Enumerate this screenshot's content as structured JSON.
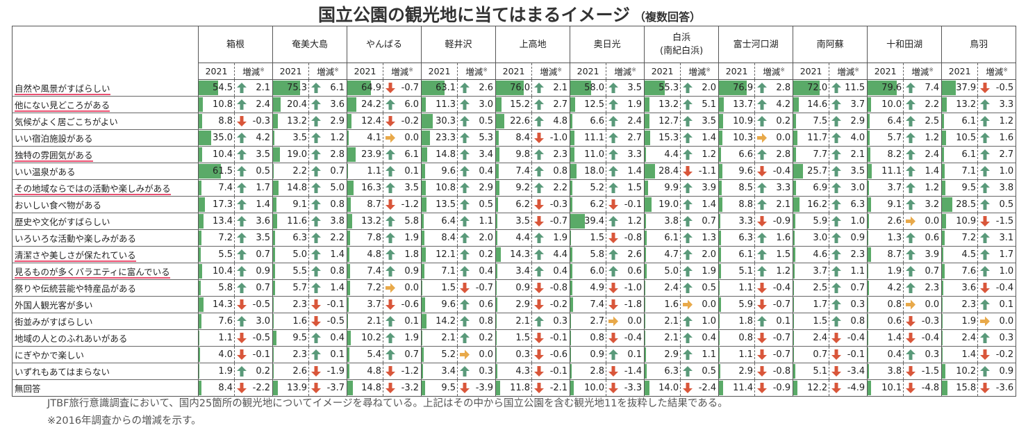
{
  "title": "国立公園の観光地に当てはまるイメージ",
  "subtitle": "（複数回答）",
  "year_label": "2021",
  "change_label": "増減",
  "change_mark": "※",
  "notes": [
    "JTBF旅行意識調査において、国内25箇所の観光地についてイメージを尋ねている。上記はその中から国立公園を含む観光地11を抜粋した結果である。",
    "※2016年調査からの増減を示す。"
  ],
  "colors": {
    "bar": "#5aaa68",
    "up": "#5a9a7a",
    "down": "#d9563a",
    "flat": "#e8a94a",
    "underline": "#e94f70"
  },
  "chart_data": {
    "type": "table",
    "destinations": [
      {
        "name": "箱根",
        "sub": ""
      },
      {
        "name": "奄美大島",
        "sub": ""
      },
      {
        "name": "やんばる",
        "sub": ""
      },
      {
        "name": "軽井沢",
        "sub": ""
      },
      {
        "name": "上高地",
        "sub": ""
      },
      {
        "name": "奥日光",
        "sub": ""
      },
      {
        "name": "白浜",
        "sub": "(南紀白浜)"
      },
      {
        "name": "富士河口湖",
        "sub": ""
      },
      {
        "name": "南阿蘇",
        "sub": ""
      },
      {
        "name": "十和田湖",
        "sub": ""
      },
      {
        "name": "鳥羽",
        "sub": ""
      }
    ],
    "rows": [
      {
        "label": "自然や風景がすばらしい",
        "underline": true,
        "values": [
          54.5,
          75.3,
          64.9,
          63.1,
          76.0,
          58.0,
          55.3,
          76.9,
          72.0,
          79.6,
          37.9
        ],
        "changes": [
          2.1,
          6.1,
          -0.7,
          2.6,
          2.1,
          3.5,
          2.0,
          2.8,
          11.5,
          7.4,
          -0.5
        ]
      },
      {
        "label": "他にない見どころがある",
        "underline": true,
        "values": [
          10.8,
          20.4,
          24.2,
          11.3,
          15.2,
          12.5,
          13.2,
          13.7,
          14.6,
          10.0,
          13.2
        ],
        "changes": [
          2.4,
          3.6,
          6.0,
          3.0,
          2.7,
          1.9,
          5.1,
          4.2,
          3.7,
          2.2,
          3.3
        ]
      },
      {
        "label": "気候がよく居ごこちがよい",
        "underline": false,
        "values": [
          8.8,
          13.2,
          12.4,
          30.3,
          22.6,
          6.6,
          12.7,
          10.9,
          7.5,
          6.4,
          6.1
        ],
        "changes": [
          -0.3,
          2.9,
          -0.2,
          0.5,
          4.8,
          2.4,
          3.5,
          0.2,
          2.9,
          2.5,
          1.2
        ]
      },
      {
        "label": "いい宿泊施設がある",
        "underline": false,
        "values": [
          35.0,
          3.5,
          4.1,
          23.3,
          8.4,
          11.1,
          15.3,
          10.3,
          11.7,
          5.7,
          10.5
        ],
        "changes": [
          4.2,
          1.2,
          0.0,
          5.3,
          -1.0,
          2.7,
          1.4,
          0.0,
          4.0,
          1.2,
          1.6
        ]
      },
      {
        "label": "独特の雰囲気がある",
        "underline": true,
        "values": [
          10.4,
          19.0,
          23.9,
          14.8,
          9.8,
          11.0,
          4.4,
          6.6,
          7.7,
          8.2,
          6.1
        ],
        "changes": [
          3.5,
          2.8,
          6.1,
          3.4,
          2.3,
          3.3,
          1.2,
          2.8,
          2.1,
          2.4,
          2.7
        ]
      },
      {
        "label": "いい温泉がある",
        "underline": false,
        "values": [
          61.5,
          2.2,
          1.1,
          9.6,
          7.4,
          18.0,
          28.4,
          9.6,
          25.7,
          11.1,
          7.1
        ],
        "changes": [
          0.5,
          0.7,
          0.1,
          0.4,
          0.8,
          1.4,
          -1.1,
          -0.4,
          3.5,
          1.4,
          1.0
        ]
      },
      {
        "label": "その地域ならではの活動や楽しみがある",
        "underline": true,
        "values": [
          7.4,
          14.8,
          16.3,
          10.8,
          9.2,
          5.2,
          9.9,
          8.5,
          6.9,
          3.7,
          9.5
        ],
        "changes": [
          1.7,
          5.0,
          3.5,
          2.9,
          2.2,
          1.5,
          3.9,
          3.3,
          3.0,
          1.2,
          3.8
        ]
      },
      {
        "label": "おいしい食べ物がある",
        "underline": false,
        "values": [
          17.3,
          9.1,
          8.7,
          13.5,
          6.2,
          6.2,
          19.0,
          8.8,
          16.2,
          9.1,
          28.5
        ],
        "changes": [
          1.4,
          0.8,
          -1.2,
          0.5,
          -0.3,
          -0.1,
          1.4,
          2.1,
          6.3,
          3.2,
          0.5
        ]
      },
      {
        "label": "歴史や文化がすばらしい",
        "underline": false,
        "values": [
          13.4,
          11.6,
          13.2,
          6.4,
          3.5,
          39.4,
          3.8,
          3.3,
          5.9,
          2.6,
          10.9
        ],
        "changes": [
          3.6,
          3.8,
          5.8,
          1.1,
          -0.7,
          1.2,
          0.7,
          -0.9,
          1.0,
          0.0,
          -1.5
        ]
      },
      {
        "label": "いろいろな活動や楽しみがある",
        "underline": false,
        "values": [
          7.2,
          6.3,
          7.8,
          8.4,
          4.4,
          1.5,
          6.1,
          6.3,
          3.0,
          1.3,
          7.2
        ],
        "changes": [
          3.5,
          2.2,
          1.9,
          2.0,
          1.9,
          -0.8,
          1.3,
          1.6,
          0.9,
          0.6,
          3.1
        ]
      },
      {
        "label": "清潔さや美しさが保たれている",
        "underline": true,
        "values": [
          5.5,
          5.0,
          4.8,
          12.1,
          14.3,
          5.8,
          4.7,
          6.1,
          4.6,
          8.7,
          4.5
        ],
        "changes": [
          0.7,
          1.4,
          1.8,
          0.2,
          4.4,
          2.6,
          2.0,
          1.5,
          2.3,
          3.9,
          1.7
        ]
      },
      {
        "label": "見るものが多くバラエティに富んでいる",
        "underline": true,
        "values": [
          10.4,
          5.5,
          7.4,
          7.1,
          3.4,
          6.0,
          5.0,
          5.1,
          3.7,
          1.9,
          7.6
        ],
        "changes": [
          0.9,
          0.8,
          0.9,
          0.4,
          0.4,
          0.6,
          1.9,
          1.2,
          1.1,
          0.7,
          1.0
        ]
      },
      {
        "label": "祭りや伝統芸能や特産品がある",
        "underline": false,
        "values": [
          5.8,
          5.7,
          7.2,
          1.5,
          0.9,
          4.9,
          2.4,
          1.1,
          2.5,
          4.2,
          3.6
        ],
        "changes": [
          0.7,
          1.4,
          0.0,
          -0.7,
          -0.8,
          -1.0,
          0.5,
          -0.4,
          0.7,
          2.3,
          -0.4
        ]
      },
      {
        "label": "外国人観光客が多い",
        "underline": false,
        "values": [
          14.3,
          2.3,
          3.7,
          9.6,
          2.9,
          7.4,
          1.6,
          5.9,
          1.7,
          0.8,
          2.3
        ],
        "changes": [
          -0.5,
          -0.1,
          -0.6,
          0.6,
          -0.2,
          -1.8,
          0.0,
          -0.7,
          0.3,
          0.0,
          0.1
        ]
      },
      {
        "label": "街並みがすばらしい",
        "underline": false,
        "values": [
          7.6,
          1.6,
          2.1,
          14.2,
          2.1,
          2.7,
          2.1,
          1.8,
          1.5,
          0.6,
          1.9
        ],
        "changes": [
          3.0,
          -0.5,
          0.1,
          0.8,
          0.3,
          0.0,
          1.0,
          0.1,
          0.8,
          -0.3,
          0.0
        ]
      },
      {
        "label": "地域の人とのふれあいがある",
        "underline": false,
        "values": [
          1.1,
          9.5,
          10.2,
          2.1,
          1.5,
          0.8,
          2.1,
          0.8,
          2.4,
          1.4,
          2.4
        ],
        "changes": [
          -0.5,
          0.4,
          1.9,
          0.2,
          -0.1,
          -0.4,
          0.4,
          -0.7,
          -0.4,
          -0.4,
          0.3
        ]
      },
      {
        "label": "にぎやかで楽しい",
        "underline": false,
        "values": [
          4.0,
          2.3,
          5.4,
          5.2,
          0.3,
          0.9,
          2.9,
          1.1,
          0.7,
          0.4,
          1.4
        ],
        "changes": [
          -0.1,
          0.1,
          0.7,
          0.0,
          -0.6,
          0.1,
          1.1,
          -0.7,
          -0.1,
          0.3,
          -0.2
        ]
      },
      {
        "label": "いずれもあてはまらない",
        "underline": false,
        "values": [
          1.9,
          2.6,
          4.8,
          3.4,
          4.3,
          2.8,
          6.3,
          2.9,
          5.1,
          3.8,
          10.2
        ],
        "changes": [
          0.2,
          -1.9,
          -1.2,
          0.3,
          -0.1,
          -1.4,
          0.5,
          -0.8,
          -3.4,
          -1.5,
          0.9
        ]
      },
      {
        "label": "無回答",
        "underline": false,
        "values": [
          8.4,
          13.9,
          14.8,
          9.5,
          11.8,
          10.0,
          14.0,
          11.4,
          12.2,
          10.1,
          15.8
        ],
        "changes": [
          -2.2,
          -3.7,
          -3.2,
          -3.9,
          -2.1,
          -3.3,
          -2.4,
          -0.9,
          -4.9,
          -4.8,
          -3.6
        ]
      }
    ]
  }
}
